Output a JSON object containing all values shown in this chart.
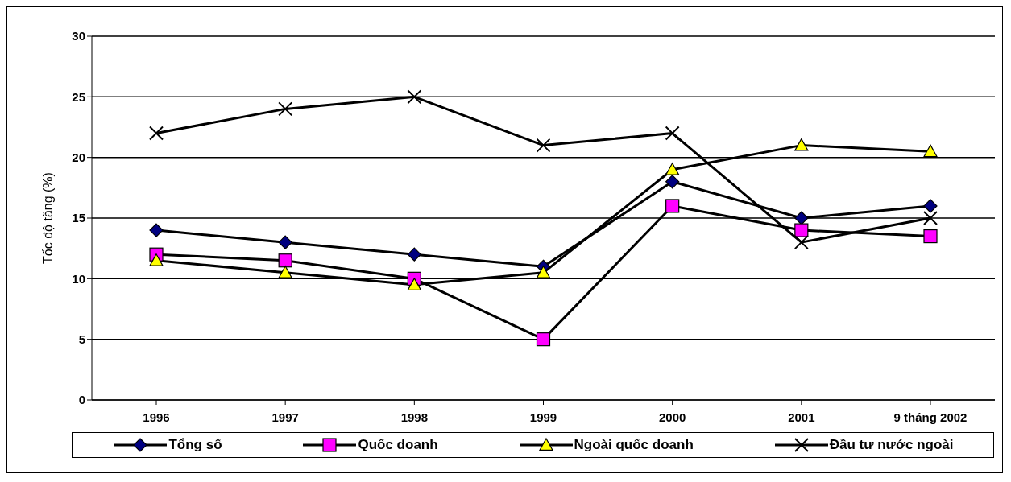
{
  "chart_data": {
    "type": "line",
    "ylabel": "Tốc độ tăng (%)",
    "categories": [
      "1996",
      "1997",
      "1998",
      "1999",
      "2000",
      "2001",
      "9 tháng 2002"
    ],
    "series": [
      {
        "name": "Tổng số",
        "color": "#000080",
        "marker": "diamond",
        "values": [
          14,
          13,
          12,
          11,
          18,
          15,
          16
        ]
      },
      {
        "name": "Quốc doanh",
        "color": "#ff00ff",
        "marker": "square",
        "values": [
          12,
          11.5,
          10,
          5,
          16,
          14,
          13.5
        ]
      },
      {
        "name": "Ngoài quốc doanh",
        "color": "#ffff00",
        "marker": "triangle",
        "values": [
          11.5,
          10.5,
          9.5,
          10.5,
          19,
          21,
          20.5
        ]
      },
      {
        "name": "Đầu tư nước ngoài",
        "color": "#000000",
        "marker": "cross",
        "values": [
          22,
          24,
          25,
          21,
          22,
          13,
          15
        ]
      }
    ],
    "ylim": [
      0,
      30
    ],
    "yticks": [
      0,
      5,
      10,
      15,
      20,
      25,
      30
    ],
    "grid": "y",
    "legend": "bottom",
    "line_style": "solid"
  }
}
